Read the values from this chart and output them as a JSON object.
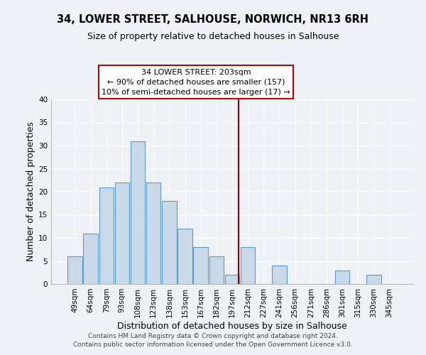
{
  "title": "34, LOWER STREET, SALHOUSE, NORWICH, NR13 6RH",
  "subtitle": "Size of property relative to detached houses in Salhouse",
  "xlabel": "Distribution of detached houses by size in Salhouse",
  "ylabel": "Number of detached properties",
  "bar_labels": [
    "49sqm",
    "64sqm",
    "79sqm",
    "93sqm",
    "108sqm",
    "123sqm",
    "138sqm",
    "153sqm",
    "167sqm",
    "182sqm",
    "197sqm",
    "212sqm",
    "227sqm",
    "241sqm",
    "256sqm",
    "271sqm",
    "286sqm",
    "301sqm",
    "315sqm",
    "330sqm",
    "345sqm"
  ],
  "bar_values": [
    6,
    11,
    21,
    22,
    31,
    22,
    18,
    12,
    8,
    6,
    2,
    8,
    0,
    4,
    0,
    0,
    0,
    3,
    0,
    2,
    0
  ],
  "bar_color": "#c9d9e8",
  "bar_edgecolor": "#5b9bd5",
  "vline_color": "#8b0000",
  "ylim": [
    0,
    40
  ],
  "yticks": [
    0,
    5,
    10,
    15,
    20,
    25,
    30,
    35,
    40
  ],
  "annotation_title": "34 LOWER STREET: 203sqm",
  "annotation_line1": "← 90% of detached houses are smaller (157)",
  "annotation_line2": "10% of semi-detached houses are larger (17) →",
  "footer_line1": "Contains HM Land Registry data © Crown copyright and database right 2024.",
  "footer_line2": "Contains public sector information licensed under the Open Government Licence v3.0.",
  "background_color": "#eef2f7",
  "grid_color": "#ffffff",
  "title_fontsize": 10.5,
  "subtitle_fontsize": 9,
  "axis_label_fontsize": 9,
  "tick_fontsize": 7.5,
  "annotation_fontsize": 8,
  "footer_fontsize": 6.5
}
